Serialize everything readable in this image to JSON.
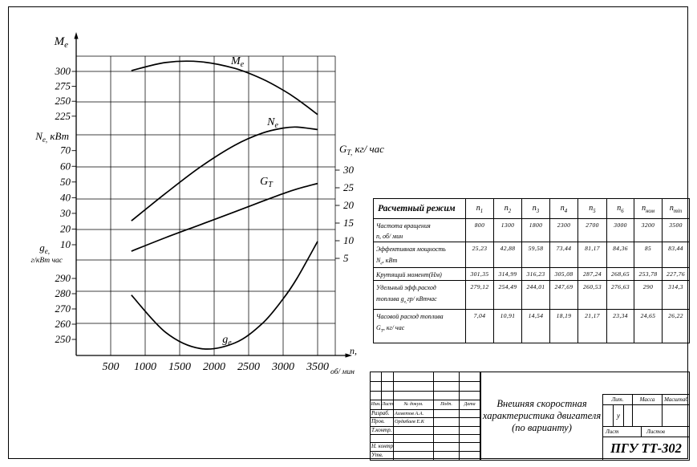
{
  "chart_data": {
    "type": "line",
    "x": [
      800,
      1300,
      1800,
      2300,
      2700,
      3000,
      3200,
      3500
    ],
    "x_axis": {
      "label_segs": [
        {
          "t": "n,"
        }
      ],
      "unit": "об/ мин",
      "ticks": [
        500,
        1000,
        1500,
        2000,
        2500,
        3000,
        3500
      ]
    },
    "axes": {
      "Me": {
        "title_segs": [
          {
            "t": "M"
          },
          {
            "t": "е",
            "sub": true
          }
        ],
        "ticks": [
          300,
          275,
          250,
          225
        ]
      },
      "Ne": {
        "title_segs": [
          {
            "t": "N"
          },
          {
            "t": "е,",
            "sub": true
          },
          {
            "t": " кВт"
          }
        ],
        "ticks": [
          70,
          60,
          50,
          40,
          30,
          20,
          10
        ]
      },
      "ge": {
        "title_segs": [
          {
            "t": "g"
          },
          {
            "t": "е,",
            "sub": true
          }
        ],
        "unit": "г/кВт час",
        "ticks": [
          290,
          280,
          270,
          260,
          250
        ]
      },
      "GT": {
        "title_segs": [
          {
            "t": "G"
          },
          {
            "t": "Т,",
            "sub": true
          },
          {
            "t": " кг/ час"
          }
        ],
        "ticks": [
          30,
          25,
          20,
          15,
          10,
          5
        ]
      }
    },
    "series": [
      {
        "name": "Me",
        "axis": "Me",
        "label_segs": [
          {
            "t": "M"
          },
          {
            "t": "е",
            "sub": true
          }
        ],
        "values": [
          301.35,
          314.99,
          316.23,
          305.08,
          287.24,
          268.65,
          253.78,
          227.76
        ]
      },
      {
        "name": "Ne",
        "axis": "Ne",
        "label_segs": [
          {
            "t": "N"
          },
          {
            "t": "е",
            "sub": true
          }
        ],
        "values": [
          25.23,
          42.88,
          59.58,
          73.44,
          81.17,
          84.36,
          85,
          83.44
        ]
      },
      {
        "name": "GT",
        "axis": "GT",
        "label_segs": [
          {
            "t": "G"
          },
          {
            "t": "Т",
            "sub": true
          }
        ],
        "values": [
          7.04,
          10.91,
          14.54,
          18.19,
          21.17,
          23.34,
          24.65,
          26.22
        ]
      },
      {
        "name": "ge",
        "axis": "ge",
        "label_segs": [
          {
            "t": "g"
          },
          {
            "t": "е",
            "sub": true
          }
        ],
        "values": [
          279.12,
          254.49,
          244.01,
          247.69,
          260.53,
          276.63,
          290,
          314.3
        ]
      }
    ]
  },
  "table": {
    "corner": "Расчетный режим",
    "col_headers": [
      {
        "base": "n",
        "sub": "1"
      },
      {
        "base": "n",
        "sub": "2"
      },
      {
        "base": "n",
        "sub": "3"
      },
      {
        "base": "n",
        "sub": "4"
      },
      {
        "base": "n",
        "sub": "5"
      },
      {
        "base": "n",
        "sub": "6"
      },
      {
        "base": "n",
        "sub": "ном"
      },
      {
        "base": "n",
        "sub": "min"
      }
    ],
    "rows": [
      {
        "label_lines": [
          [
            {
              "t": "Частота вращения"
            }
          ],
          [
            {
              "t": "n, об/ мин"
            }
          ]
        ],
        "values": [
          "800",
          "1300",
          "1800",
          "2300",
          "2700",
          "3000",
          "3200",
          "3500"
        ]
      },
      {
        "label_lines": [
          [
            {
              "t": "Эффективная мощность"
            }
          ],
          [
            {
              "t": "N"
            },
            {
              "t": "е",
              "sub": true
            },
            {
              "t": ", кВт"
            }
          ]
        ],
        "values": [
          "25,23",
          "42,88",
          "59,58",
          "73,44",
          "81,17",
          "84,36",
          "85",
          "83,44"
        ]
      },
      {
        "label_lines": [
          [
            {
              "t": "Крутящий момент(Нм)"
            }
          ]
        ],
        "values": [
          "301,35",
          "314,99",
          "316,23",
          "305,08",
          "287,24",
          "268,65",
          "253,78",
          "227,76"
        ]
      },
      {
        "label_lines": [
          [
            {
              "t": "Удельный эфф.расход"
            }
          ],
          [
            {
              "t": "топлива g"
            },
            {
              "t": "е,",
              "sub": true
            },
            {
              "t": "гр/ кВтчас"
            }
          ]
        ],
        "values": [
          "279,12",
          "254,49",
          "244,01",
          "247,69",
          "260,53",
          "276,63",
          "290",
          "314,3"
        ]
      },
      {
        "label_lines": [
          [
            {
              "t": "Часовой расход топлива"
            }
          ],
          [
            {
              "t": "G"
            },
            {
              "t": "Т",
              "sub": true
            },
            {
              "t": ", кг/ час"
            }
          ]
        ],
        "values": [
          "7,04",
          "10,91",
          "14,54",
          "18,19",
          "21,17",
          "23,34",
          "24,65",
          "26,22"
        ]
      }
    ]
  },
  "sheet": {
    "title_block": {
      "header_cols": [
        "Изм.",
        "Лист",
        "№ докум.",
        "Подп.",
        "Дата"
      ],
      "rows": [
        {
          "role": "Разраб.",
          "name": "Ахметов А.А."
        },
        {
          "role": "Пров.",
          "name": "Ордабаев Е.К"
        },
        {
          "role": "Т.контр.",
          "name": ""
        },
        {
          "role": "",
          "name": ""
        },
        {
          "role": "Н. контр.",
          "name": ""
        },
        {
          "role": "Утв.",
          "name": ""
        }
      ],
      "doc_title_lines": [
        "Внешняя скоростная",
        "характеристика двигателя",
        "(по варианту)"
      ],
      "lit_label": "Лит.",
      "mass_label": "Масса",
      "scale_label": "Масштаб",
      "lit_value": "у",
      "sheet_label": "Лист",
      "sheets_label": "Листов",
      "org": "ПГУ ТТ-302"
    }
  }
}
